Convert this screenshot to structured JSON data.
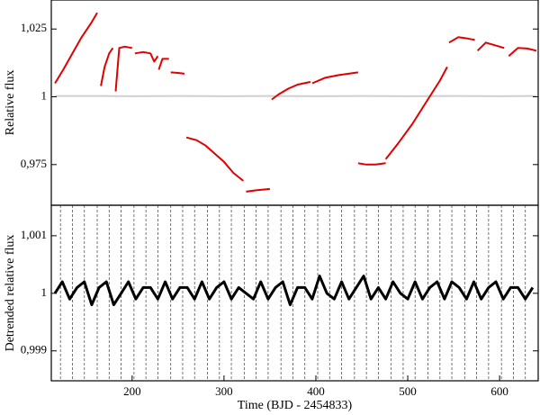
{
  "chart_data": [
    {
      "type": "line",
      "ylabel": "Relative flux",
      "xlim": [
        112,
        642
      ],
      "ylim": [
        0.96,
        1.0357
      ],
      "yticks": [
        {
          "value": 1.025,
          "label": "1,025"
        },
        1,
        {
          "value": 0.975,
          "label": "0,975"
        }
      ],
      "series": [
        {
          "color": "#d0d0d0",
          "x": [
            116,
            160,
            200,
            250,
            300,
            350,
            400,
            450,
            500,
            550,
            600,
            640
          ],
          "values": [
            1.0003,
            1.0003,
            1.0002,
            1.0003,
            1.0002,
            1.0003,
            1.0002,
            1.0003,
            1.0002,
            1.0003,
            1.0002,
            1.0003
          ]
        },
        {
          "color": "#e00000",
          "x": [
            116,
            125,
            135,
            145,
            155,
            162,
            null,
            166,
            170,
            175,
            179,
            null,
            182,
            186,
            192,
            200,
            null,
            203,
            212,
            220,
            224,
            228,
            null,
            229,
            233,
            240,
            null,
            242,
            250,
            257,
            null,
            259,
            270,
            280,
            290,
            300,
            310,
            321,
            null,
            324,
            335,
            350,
            null,
            352,
            360,
            370,
            380,
            394,
            null,
            396,
            410,
            425,
            446,
            null,
            446,
            455,
            465,
            476,
            null,
            476,
            490,
            505,
            520,
            535,
            543,
            null,
            545,
            555,
            565,
            573,
            null,
            576,
            585,
            595,
            605,
            null,
            610,
            620,
            630,
            640
          ],
          "values": [
            1.005,
            1.01,
            1.016,
            1.022,
            1.027,
            1.031,
            null,
            1.004,
            1.011,
            1.016,
            1.018,
            null,
            1.002,
            1.018,
            1.0185,
            1.018,
            null,
            1.016,
            1.0165,
            1.016,
            1.013,
            1.015,
            null,
            1.01,
            1.014,
            1.014,
            null,
            1.009,
            1.0088,
            1.0085,
            null,
            0.985,
            0.984,
            0.982,
            0.979,
            0.976,
            0.972,
            0.969,
            null,
            0.965,
            0.9655,
            0.966,
            null,
            0.999,
            1.001,
            1.003,
            1.0045,
            1.0055,
            null,
            1.005,
            1.007,
            1.008,
            1.009,
            null,
            0.9755,
            0.975,
            0.975,
            0.9755,
            null,
            0.977,
            0.983,
            0.99,
            0.998,
            1.006,
            1.011,
            null,
            1.02,
            1.022,
            1.0215,
            1.021,
            null,
            1.017,
            1.02,
            1.019,
            1.018,
            null,
            1.015,
            1.018,
            1.0178,
            1.017
          ]
        }
      ]
    },
    {
      "type": "line",
      "ylabel": "Detrended relative flux",
      "xlabel": "Time (BJD - 2454833)",
      "xlim": [
        112,
        642
      ],
      "ylim": [
        0.99848,
        1.00153
      ],
      "xticks": [
        200,
        300,
        400,
        500,
        600
      ],
      "yticks": [
        {
          "value": 1.001,
          "label": "1,001"
        },
        1,
        {
          "value": 0.999,
          "label": "0,999"
        }
      ],
      "transits": [
        122,
        135,
        148,
        162,
        175,
        188,
        202,
        215,
        228,
        242,
        255,
        268,
        282,
        295,
        308,
        322,
        335,
        348,
        362,
        375,
        388,
        402,
        415,
        428,
        442,
        455,
        468,
        482,
        495,
        508,
        522,
        535,
        548,
        562,
        575,
        588,
        602,
        615,
        628
      ],
      "series": [
        {
          "color": "#000000",
          "x": [
            116,
            124,
            132,
            140,
            148,
            156,
            164,
            172,
            180,
            188,
            196,
            204,
            212,
            220,
            228,
            236,
            244,
            252,
            260,
            268,
            276,
            284,
            292,
            300,
            308,
            316,
            324,
            332,
            340,
            348,
            356,
            364,
            372,
            380,
            388,
            396,
            404,
            412,
            420,
            428,
            436,
            444,
            452,
            460,
            468,
            476,
            484,
            492,
            500,
            508,
            516,
            524,
            532,
            540,
            548,
            556,
            564,
            572,
            580,
            588,
            596,
            604,
            612,
            620,
            628,
            636
          ],
          "values": [
            1.0,
            1.0002,
            0.9999,
            1.0001,
            1.0002,
            0.9998,
            1.0001,
            1.0002,
            0.9998,
            1.0,
            1.0002,
            0.9999,
            1.0001,
            1.0001,
            0.9999,
            1.0002,
            0.9999,
            1.0001,
            1.0001,
            0.9999,
            1.0002,
            0.9999,
            1.0001,
            1.0002,
            0.9999,
            1.0001,
            1.0,
            0.9999,
            1.0002,
            0.9999,
            1.0001,
            1.0002,
            0.9998,
            1.0001,
            1.0001,
            0.9999,
            1.0003,
            1.0,
            0.9999,
            1.0002,
            0.9999,
            1.0001,
            1.0003,
            0.9999,
            1.0001,
            0.9999,
            1.0002,
            1.0,
            0.9999,
            1.0002,
            0.9999,
            1.0001,
            1.0002,
            0.9999,
            1.0002,
            1.0001,
            0.9999,
            1.0002,
            0.9999,
            1.0001,
            1.0002,
            0.9999,
            1.0001,
            1.0001,
            0.9999,
            1.0001
          ]
        }
      ]
    }
  ]
}
